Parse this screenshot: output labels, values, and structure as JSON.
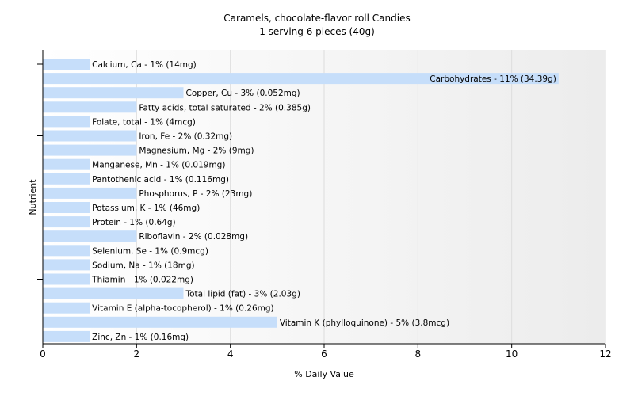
{
  "chart_data": {
    "type": "bar",
    "orientation": "horizontal",
    "title": "Caramels, chocolate-flavor roll Candies",
    "subtitle": "1 serving 6 pieces (40g)",
    "xlabel": "% Daily Value",
    "ylabel": "Nutrient",
    "xlim": [
      0,
      12
    ],
    "xticks": [
      0,
      2,
      4,
      6,
      8,
      10,
      12
    ],
    "grid": true,
    "bar_color": "#c6defa",
    "categories": [
      "Calcium, Ca",
      "Carbohydrates",
      "Copper, Cu",
      "Fatty acids, total saturated",
      "Folate, total",
      "Iron, Fe",
      "Magnesium, Mg",
      "Manganese, Mn",
      "Pantothenic acid",
      "Phosphorus, P",
      "Potassium, K",
      "Protein",
      "Riboflavin",
      "Selenium, Se",
      "Sodium, Na",
      "Thiamin",
      "Total lipid (fat)",
      "Vitamin E (alpha-tocopherol)",
      "Vitamin K (phylloquinone)",
      "Zinc, Zn"
    ],
    "values": [
      1,
      11,
      3,
      2,
      1,
      2,
      2,
      1,
      1,
      2,
      1,
      1,
      2,
      1,
      1,
      1,
      3,
      1,
      5,
      1
    ],
    "labels": [
      "Calcium, Ca - 1% (14mg)",
      "Carbohydrates - 11% (34.39g)",
      "Copper, Cu - 3% (0.052mg)",
      "Fatty acids, total saturated - 2% (0.385g)",
      "Folate, total - 1% (4mcg)",
      "Iron, Fe - 2% (0.32mg)",
      "Magnesium, Mg - 2% (9mg)",
      "Manganese, Mn - 1% (0.019mg)",
      "Pantothenic acid - 1% (0.116mg)",
      "Phosphorus, P - 2% (23mg)",
      "Potassium, K - 1% (46mg)",
      "Protein - 1% (0.64g)",
      "Riboflavin - 2% (0.028mg)",
      "Selenium, Se - 1% (0.9mcg)",
      "Sodium, Na - 1% (18mg)",
      "Thiamin - 1% (0.022mg)",
      "Total lipid (fat) - 3% (2.03g)",
      "Vitamin E (alpha-tocopherol) - 1% (0.26mg)",
      "Vitamin K (phylloquinone) - 5% (3.8mcg)",
      "Zinc, Zn - 1% (0.16mg)"
    ]
  }
}
